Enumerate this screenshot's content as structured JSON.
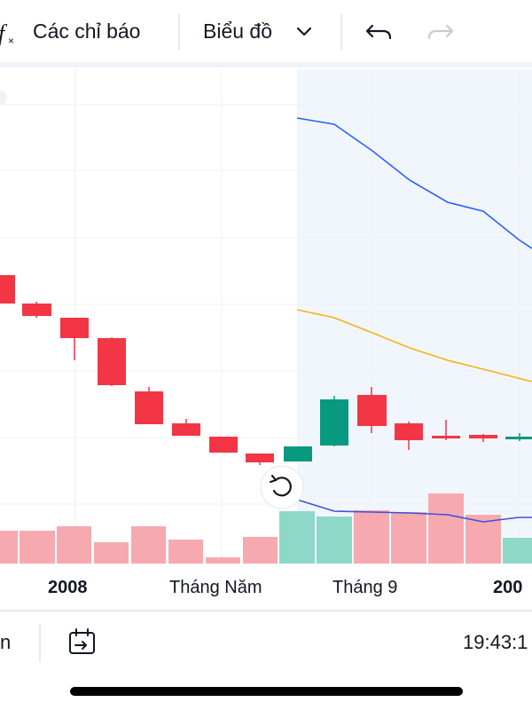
{
  "toolbar": {
    "indicators": "Các chỉ báo",
    "chart_type": "Biểu đồ"
  },
  "x_axis_labels": [
    "2008",
    "Tháng Năm",
    "Tháng 9",
    "200"
  ],
  "bottom_bar": {
    "left": "n",
    "time": "19:43:1"
  }
}
